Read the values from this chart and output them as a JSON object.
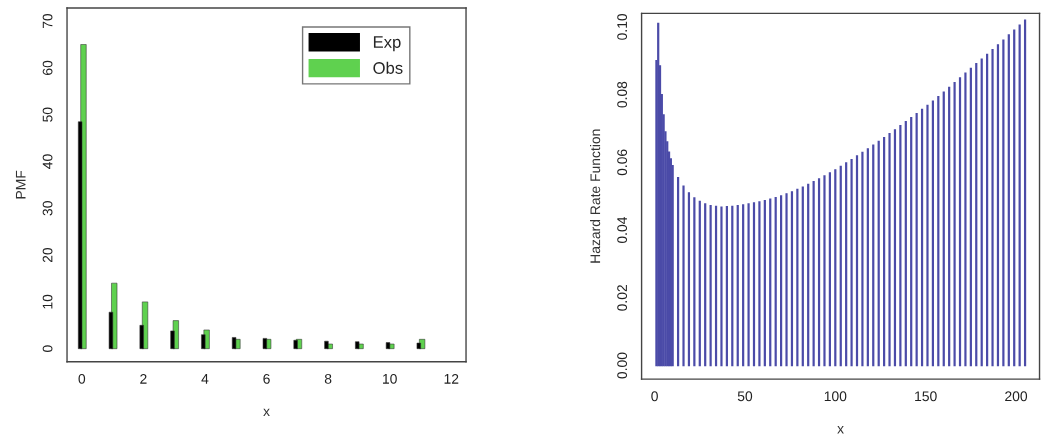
{
  "chart_data": [
    {
      "type": "bar",
      "xlabel": "x",
      "ylabel": "PMF",
      "x": [
        0,
        1,
        2,
        3,
        4,
        5,
        6,
        7,
        8,
        9,
        10,
        11
      ],
      "series": [
        {
          "name": "Exp",
          "color": "#000000",
          "values": [
            48.5,
            7.8,
            5,
            3.8,
            3,
            2.4,
            2.2,
            1.8,
            1.6,
            1.5,
            1.3,
            1.2
          ]
        },
        {
          "name": "Obs",
          "color": "#5fd14f",
          "values": [
            65,
            14,
            10,
            6,
            4,
            2,
            2,
            2,
            1,
            1,
            1,
            2
          ]
        }
      ],
      "xlim": [
        -0.48,
        12.48
      ],
      "xticks": [
        0,
        2,
        4,
        6,
        8,
        10,
        12
      ],
      "ylim": [
        -2.8,
        72.8
      ],
      "yticks": [
        0,
        10,
        20,
        30,
        40,
        50,
        60,
        70
      ],
      "legend": "top right",
      "grid": false
    },
    {
      "type": "bar",
      "xlabel": "x",
      "ylabel": "Hazard Rate Function",
      "x": [
        1,
        2,
        3,
        4,
        5,
        6,
        7,
        8,
        9,
        10,
        13,
        16,
        19,
        22,
        25,
        28,
        31,
        34,
        37,
        40,
        43,
        46,
        49,
        52,
        55,
        58,
        61,
        64,
        67,
        70,
        73,
        76,
        79,
        82,
        85,
        88,
        91,
        94,
        97,
        100,
        103,
        106,
        109,
        112,
        115,
        118,
        121,
        124,
        127,
        130,
        133,
        136,
        139,
        142,
        145,
        148,
        151,
        154,
        157,
        160,
        163,
        166,
        169,
        172,
        175,
        178,
        181,
        184,
        187,
        190,
        193,
        196,
        199,
        202,
        205
      ],
      "series": [
        {
          "color": "#4b4ba8",
          "values": [
            0.09,
            0.101,
            0.0885,
            0.08,
            0.074,
            0.069,
            0.066,
            0.063,
            0.061,
            0.059,
            0.0555,
            0.053,
            0.051,
            0.0495,
            0.0485,
            0.0477,
            0.0472,
            0.047,
            0.0468,
            0.0469,
            0.047,
            0.0472,
            0.0474,
            0.0477,
            0.048,
            0.0483,
            0.0487,
            0.0491,
            0.0496,
            0.0501,
            0.0507,
            0.0513,
            0.052,
            0.0527,
            0.0535,
            0.0543,
            0.0551,
            0.056,
            0.0569,
            0.0578,
            0.0588,
            0.0598,
            0.0608,
            0.0619,
            0.0629,
            0.064,
            0.0651,
            0.0662,
            0.0673,
            0.0685,
            0.0696,
            0.0708,
            0.072,
            0.0732,
            0.0744,
            0.0756,
            0.0768,
            0.0781,
            0.0794,
            0.0807,
            0.0821,
            0.0835,
            0.0849,
            0.0863,
            0.0877,
            0.0891,
            0.0905,
            0.0919,
            0.0933,
            0.0947,
            0.0961,
            0.0976,
            0.099,
            0.1005,
            0.102
          ]
        }
      ],
      "xlim": [
        -7.2,
        213
      ],
      "xticks": [
        0,
        50,
        100,
        150,
        200
      ],
      "ylim": [
        -0.004,
        0.104
      ],
      "yticks": [
        {
          "value": 0,
          "label": "0.00"
        },
        {
          "value": 0.02,
          "label": "0.02"
        },
        {
          "value": 0.04,
          "label": "0.04"
        },
        {
          "value": 0.06,
          "label": "0.06"
        },
        {
          "value": 0.08,
          "label": "0.08"
        },
        {
          "value": 0.1,
          "label": "0.10"
        }
      ],
      "grid": false
    }
  ]
}
